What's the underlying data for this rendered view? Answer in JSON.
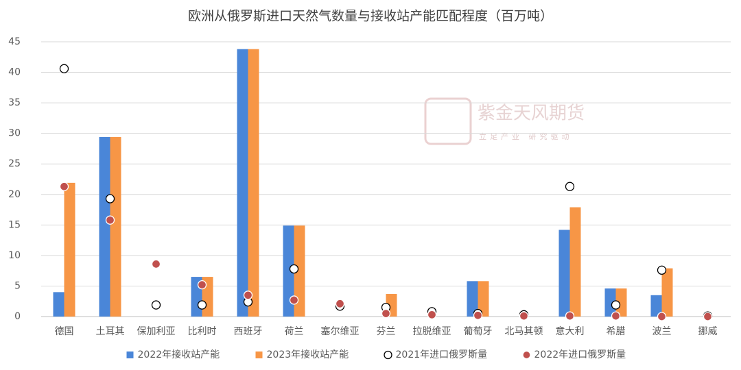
{
  "chart_data": {
    "type": "bar",
    "title": "欧洲从俄罗斯进口天然气数量与接收站产能匹配程度（百万吨）",
    "categories": [
      "德国",
      "土耳其",
      "保加利亚",
      "比利时",
      "西班牙",
      "荷兰",
      "塞尔维亚",
      "芬兰",
      "拉脱维亚",
      "葡萄牙",
      "北马其顿",
      "意大利",
      "希腊",
      "波兰",
      "挪威"
    ],
    "series": [
      {
        "name": "2022年接收站产能",
        "type": "bar",
        "color": "#4a86d8",
        "values": [
          4,
          29.4,
          0,
          6.5,
          43.8,
          14.9,
          0,
          0,
          0,
          5.8,
          0,
          14.2,
          4.6,
          3.5,
          0
        ]
      },
      {
        "name": "2023年接收站产能",
        "type": "bar",
        "color": "#f79646",
        "values": [
          21.9,
          29.4,
          0,
          6.5,
          43.8,
          14.9,
          0,
          3.7,
          0,
          5.8,
          0,
          17.9,
          4.6,
          7.9,
          0
        ]
      },
      {
        "name": "2021年进口俄罗斯量",
        "type": "scatter",
        "color": "#000000",
        "marker_fill": "#ffffff",
        "values": [
          40.6,
          19.3,
          1.9,
          1.9,
          2.4,
          7.8,
          1.7,
          1.5,
          0.8,
          0.5,
          0.3,
          21.3,
          1.9,
          7.6,
          0.1
        ]
      },
      {
        "name": "2022年进口俄罗斯量",
        "type": "scatter",
        "color": "#c0504d",
        "marker_fill": "#c0504d",
        "values": [
          21.3,
          15.8,
          8.6,
          5.2,
          3.5,
          2.7,
          2.1,
          0.5,
          0.3,
          0.2,
          0.1,
          0.1,
          0.1,
          0,
          0
        ]
      }
    ],
    "ylim": [
      0,
      45
    ],
    "yticks": [
      0,
      5,
      10,
      15,
      20,
      25,
      30,
      35,
      40,
      45
    ],
    "grid": true,
    "legend": "bottom",
    "watermark": {
      "name": "紫金天风期货",
      "slogan": "立足产业 研究驱动"
    }
  }
}
